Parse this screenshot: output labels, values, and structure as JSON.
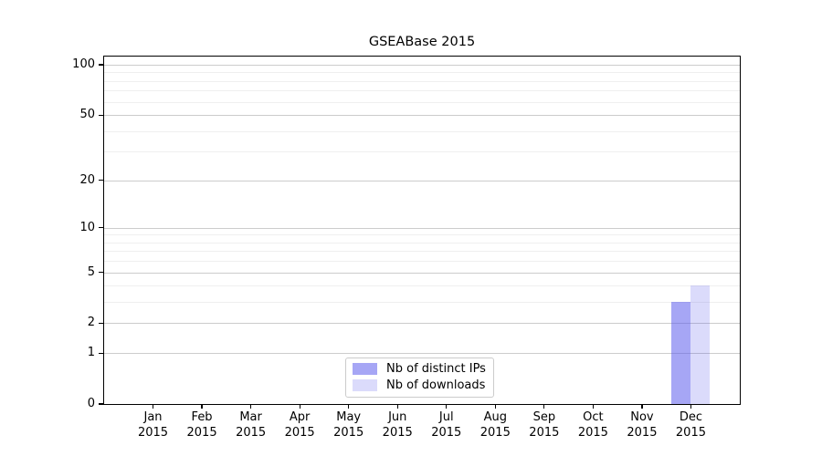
{
  "chart_data": {
    "type": "bar",
    "title": "GSEABase 2015",
    "categories": [
      "Jan",
      "Feb",
      "Mar",
      "Apr",
      "May",
      "Jun",
      "Jul",
      "Aug",
      "Sep",
      "Oct",
      "Nov",
      "Dec"
    ],
    "x_year_label": "2015",
    "series": [
      {
        "name": "Nb of distinct IPs",
        "color": "rgba(85,85,235,0.52)",
        "values": [
          0,
          0,
          0,
          0,
          0,
          0,
          0,
          0,
          0,
          0,
          0,
          3
        ]
      },
      {
        "name": "Nb of downloads",
        "color": "rgba(85,85,235,0.21)",
        "values": [
          0,
          0,
          0,
          0,
          0,
          0,
          0,
          0,
          0,
          0,
          0,
          4
        ]
      }
    ],
    "yscale": "log1p",
    "ylim": [
      0,
      112
    ],
    "y_major_ticks": [
      0,
      1,
      2,
      5,
      10,
      20,
      50,
      100
    ],
    "y_minor_gridlines": [
      3,
      4,
      6,
      7,
      8,
      9,
      30,
      40,
      60,
      70,
      80,
      90
    ],
    "grid": "horizontal",
    "legend_position": "lower-center"
  },
  "colors": {
    "major_grid": "#cccccc",
    "minor_grid": "#efefef",
    "axis": "#000000",
    "background": "#ffffff"
  }
}
